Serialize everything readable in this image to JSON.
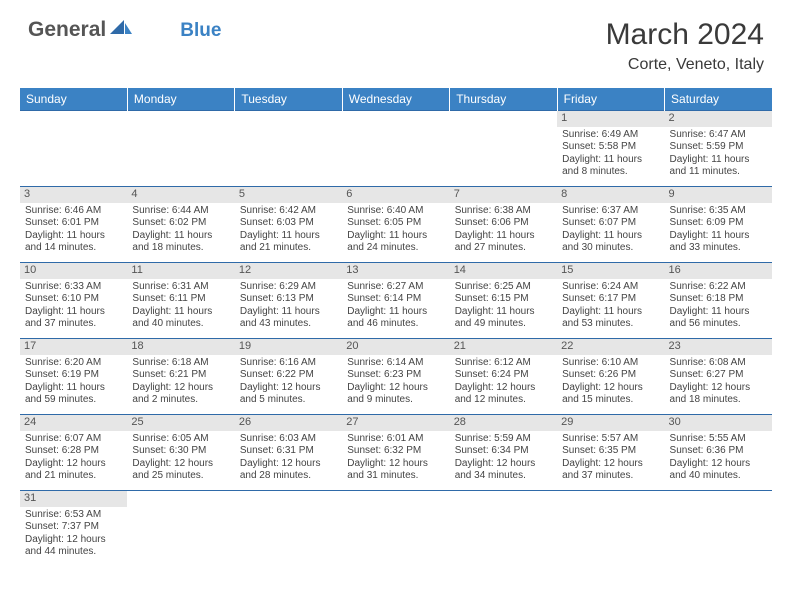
{
  "logo": {
    "text1": "General",
    "text2": "Blue"
  },
  "title": "March 2024",
  "location": "Corte, Veneto, Italy",
  "colors": {
    "header_bg": "#3b82c4",
    "header_text": "#ffffff",
    "day_border": "#2f6aa8",
    "daynum_bg": "#e6e6e6",
    "text": "#444444",
    "logo_gray": "#555555",
    "logo_blue": "#3b82c4"
  },
  "day_headers": [
    "Sunday",
    "Monday",
    "Tuesday",
    "Wednesday",
    "Thursday",
    "Friday",
    "Saturday"
  ],
  "weeks": [
    [
      null,
      null,
      null,
      null,
      null,
      {
        "n": "1",
        "sr": "Sunrise: 6:49 AM",
        "ss": "Sunset: 5:58 PM",
        "dl": "Daylight: 11 hours and 8 minutes."
      },
      {
        "n": "2",
        "sr": "Sunrise: 6:47 AM",
        "ss": "Sunset: 5:59 PM",
        "dl": "Daylight: 11 hours and 11 minutes."
      }
    ],
    [
      {
        "n": "3",
        "sr": "Sunrise: 6:46 AM",
        "ss": "Sunset: 6:01 PM",
        "dl": "Daylight: 11 hours and 14 minutes."
      },
      {
        "n": "4",
        "sr": "Sunrise: 6:44 AM",
        "ss": "Sunset: 6:02 PM",
        "dl": "Daylight: 11 hours and 18 minutes."
      },
      {
        "n": "5",
        "sr": "Sunrise: 6:42 AM",
        "ss": "Sunset: 6:03 PM",
        "dl": "Daylight: 11 hours and 21 minutes."
      },
      {
        "n": "6",
        "sr": "Sunrise: 6:40 AM",
        "ss": "Sunset: 6:05 PM",
        "dl": "Daylight: 11 hours and 24 minutes."
      },
      {
        "n": "7",
        "sr": "Sunrise: 6:38 AM",
        "ss": "Sunset: 6:06 PM",
        "dl": "Daylight: 11 hours and 27 minutes."
      },
      {
        "n": "8",
        "sr": "Sunrise: 6:37 AM",
        "ss": "Sunset: 6:07 PM",
        "dl": "Daylight: 11 hours and 30 minutes."
      },
      {
        "n": "9",
        "sr": "Sunrise: 6:35 AM",
        "ss": "Sunset: 6:09 PM",
        "dl": "Daylight: 11 hours and 33 minutes."
      }
    ],
    [
      {
        "n": "10",
        "sr": "Sunrise: 6:33 AM",
        "ss": "Sunset: 6:10 PM",
        "dl": "Daylight: 11 hours and 37 minutes."
      },
      {
        "n": "11",
        "sr": "Sunrise: 6:31 AM",
        "ss": "Sunset: 6:11 PM",
        "dl": "Daylight: 11 hours and 40 minutes."
      },
      {
        "n": "12",
        "sr": "Sunrise: 6:29 AM",
        "ss": "Sunset: 6:13 PM",
        "dl": "Daylight: 11 hours and 43 minutes."
      },
      {
        "n": "13",
        "sr": "Sunrise: 6:27 AM",
        "ss": "Sunset: 6:14 PM",
        "dl": "Daylight: 11 hours and 46 minutes."
      },
      {
        "n": "14",
        "sr": "Sunrise: 6:25 AM",
        "ss": "Sunset: 6:15 PM",
        "dl": "Daylight: 11 hours and 49 minutes."
      },
      {
        "n": "15",
        "sr": "Sunrise: 6:24 AM",
        "ss": "Sunset: 6:17 PM",
        "dl": "Daylight: 11 hours and 53 minutes."
      },
      {
        "n": "16",
        "sr": "Sunrise: 6:22 AM",
        "ss": "Sunset: 6:18 PM",
        "dl": "Daylight: 11 hours and 56 minutes."
      }
    ],
    [
      {
        "n": "17",
        "sr": "Sunrise: 6:20 AM",
        "ss": "Sunset: 6:19 PM",
        "dl": "Daylight: 11 hours and 59 minutes."
      },
      {
        "n": "18",
        "sr": "Sunrise: 6:18 AM",
        "ss": "Sunset: 6:21 PM",
        "dl": "Daylight: 12 hours and 2 minutes."
      },
      {
        "n": "19",
        "sr": "Sunrise: 6:16 AM",
        "ss": "Sunset: 6:22 PM",
        "dl": "Daylight: 12 hours and 5 minutes."
      },
      {
        "n": "20",
        "sr": "Sunrise: 6:14 AM",
        "ss": "Sunset: 6:23 PM",
        "dl": "Daylight: 12 hours and 9 minutes."
      },
      {
        "n": "21",
        "sr": "Sunrise: 6:12 AM",
        "ss": "Sunset: 6:24 PM",
        "dl": "Daylight: 12 hours and 12 minutes."
      },
      {
        "n": "22",
        "sr": "Sunrise: 6:10 AM",
        "ss": "Sunset: 6:26 PM",
        "dl": "Daylight: 12 hours and 15 minutes."
      },
      {
        "n": "23",
        "sr": "Sunrise: 6:08 AM",
        "ss": "Sunset: 6:27 PM",
        "dl": "Daylight: 12 hours and 18 minutes."
      }
    ],
    [
      {
        "n": "24",
        "sr": "Sunrise: 6:07 AM",
        "ss": "Sunset: 6:28 PM",
        "dl": "Daylight: 12 hours and 21 minutes."
      },
      {
        "n": "25",
        "sr": "Sunrise: 6:05 AM",
        "ss": "Sunset: 6:30 PM",
        "dl": "Daylight: 12 hours and 25 minutes."
      },
      {
        "n": "26",
        "sr": "Sunrise: 6:03 AM",
        "ss": "Sunset: 6:31 PM",
        "dl": "Daylight: 12 hours and 28 minutes."
      },
      {
        "n": "27",
        "sr": "Sunrise: 6:01 AM",
        "ss": "Sunset: 6:32 PM",
        "dl": "Daylight: 12 hours and 31 minutes."
      },
      {
        "n": "28",
        "sr": "Sunrise: 5:59 AM",
        "ss": "Sunset: 6:34 PM",
        "dl": "Daylight: 12 hours and 34 minutes."
      },
      {
        "n": "29",
        "sr": "Sunrise: 5:57 AM",
        "ss": "Sunset: 6:35 PM",
        "dl": "Daylight: 12 hours and 37 minutes."
      },
      {
        "n": "30",
        "sr": "Sunrise: 5:55 AM",
        "ss": "Sunset: 6:36 PM",
        "dl": "Daylight: 12 hours and 40 minutes."
      }
    ],
    [
      {
        "n": "31",
        "sr": "Sunrise: 6:53 AM",
        "ss": "Sunset: 7:37 PM",
        "dl": "Daylight: 12 hours and 44 minutes."
      },
      null,
      null,
      null,
      null,
      null,
      null
    ]
  ]
}
